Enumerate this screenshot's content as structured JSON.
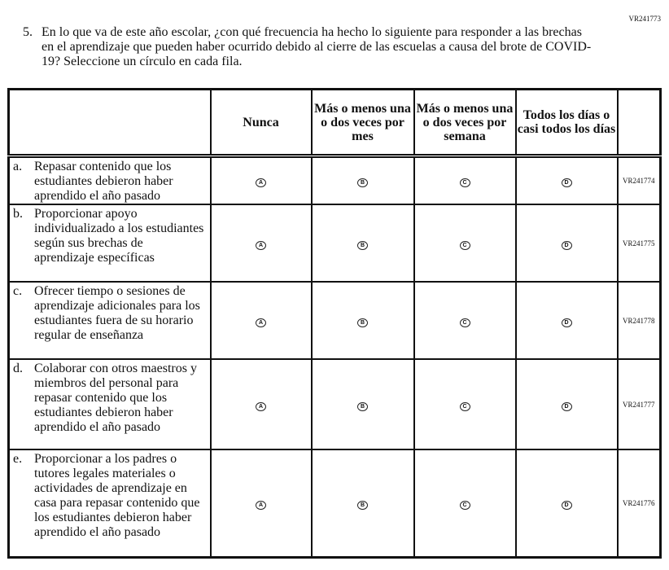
{
  "question": {
    "id": "VR241773",
    "number": "5.",
    "text": "En lo que va de este año escolar, ¿con qué frecuencia ha hecho lo siguiente para responder a las brechas en el aprendizaje que pueden haber ocurrido debido al cierre de las escuelas a causa del brote de COVID-19? Seleccione un círculo en cada fila."
  },
  "columns": [
    "Nunca",
    "Más o menos una o dos veces por mes",
    "Más o menos una o dos veces por semana",
    "Todos los días o casi todos los días"
  ],
  "options": [
    "A",
    "B",
    "C",
    "D"
  ],
  "rows": [
    {
      "letter": "a.",
      "text": "Repasar contenido que los estudiantes debieron haber aprendido el año pasado",
      "id": "VR241774"
    },
    {
      "letter": "b.",
      "text": "Proporcionar apoyo individualizado a los estudiantes según sus brechas de aprendizaje específicas",
      "id": "VR241775"
    },
    {
      "letter": "c.",
      "text": "Ofrecer tiempo o sesiones de aprendizaje adicionales para los estudiantes fuera de su horario regular de enseñanza",
      "id": "VR241778"
    },
    {
      "letter": "d.",
      "text": "Colaborar con otros maestros y miembros del personal para repasar contenido que los estudiantes debieron haber aprendido el año pasado",
      "id": "VR241777"
    },
    {
      "letter": "e.",
      "text": "Proporcionar a los padres o tutores legales materiales o actividades de aprendizaje en casa para repasar contenido que los estudiantes debieron haber aprendido el año pasado",
      "id": "VR241776"
    }
  ]
}
